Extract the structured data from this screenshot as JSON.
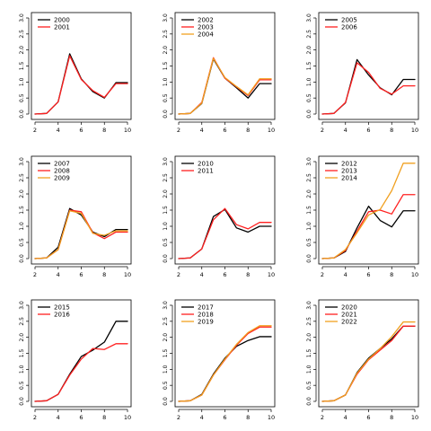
{
  "chart_data": [
    {
      "type": "line",
      "x": [
        2,
        3,
        4,
        5,
        6,
        7,
        8,
        9,
        10
      ],
      "xticks": [
        2,
        4,
        6,
        8,
        10
      ],
      "yticks": [
        "0.0",
        "0.5",
        "1.0",
        "1.5",
        "2.0",
        "2.5",
        "3.0"
      ],
      "xlim": [
        2,
        10
      ],
      "ylim": [
        0,
        3
      ],
      "grid": false,
      "legend": "top-left",
      "series": [
        {
          "name": "2000",
          "color": "#000000",
          "values": [
            0,
            0.02,
            0.38,
            1.88,
            1.1,
            0.7,
            0.5,
            0.98,
            0.98
          ]
        },
        {
          "name": "2001",
          "color": "#ff2020",
          "values": [
            0,
            0.02,
            0.38,
            1.82,
            1.08,
            0.73,
            0.52,
            0.95,
            0.95
          ]
        }
      ]
    },
    {
      "type": "line",
      "x": [
        2,
        3,
        4,
        5,
        6,
        7,
        8,
        9,
        10
      ],
      "xticks": [
        2,
        4,
        6,
        8,
        10
      ],
      "yticks": [
        "0.0",
        "0.5",
        "1.0",
        "1.5",
        "2.0",
        "2.5",
        "3.0"
      ],
      "xlim": [
        2,
        10
      ],
      "ylim": [
        0,
        3
      ],
      "grid": false,
      "legend": "top-left",
      "series": [
        {
          "name": "2002",
          "color": "#000000",
          "values": [
            0,
            0.02,
            0.33,
            1.72,
            1.12,
            0.82,
            0.5,
            0.95,
            0.95
          ]
        },
        {
          "name": "2003",
          "color": "#ff2020",
          "values": [
            0,
            0.02,
            0.36,
            1.76,
            1.12,
            0.85,
            0.58,
            1.07,
            1.07
          ]
        },
        {
          "name": "2004",
          "color": "#f0a020",
          "values": [
            0,
            0.02,
            0.34,
            1.74,
            1.14,
            0.86,
            0.6,
            1.1,
            1.1
          ]
        }
      ]
    },
    {
      "type": "line",
      "x": [
        2,
        3,
        4,
        5,
        6,
        7,
        8,
        9,
        10
      ],
      "xticks": [
        2,
        4,
        6,
        8,
        10
      ],
      "yticks": [
        "0.0",
        "0.5",
        "1.0",
        "1.5",
        "2.0",
        "2.5",
        "3.0"
      ],
      "xlim": [
        2,
        10
      ],
      "ylim": [
        0,
        3
      ],
      "grid": false,
      "legend": "top-left",
      "series": [
        {
          "name": "2005",
          "color": "#000000",
          "values": [
            0,
            0.02,
            0.35,
            1.7,
            1.22,
            0.82,
            0.6,
            1.08,
            1.08
          ]
        },
        {
          "name": "2006",
          "color": "#ff2020",
          "values": [
            0,
            0.02,
            0.36,
            1.6,
            1.3,
            0.8,
            0.62,
            0.88,
            0.88
          ]
        }
      ]
    },
    {
      "type": "line",
      "x": [
        2,
        3,
        4,
        5,
        6,
        7,
        8,
        9,
        10
      ],
      "xticks": [
        2,
        4,
        6,
        8,
        10
      ],
      "yticks": [
        "0.0",
        "0.5",
        "1.0",
        "1.5",
        "2.0",
        "2.5",
        "3.0"
      ],
      "xlim": [
        2,
        10
      ],
      "ylim": [
        0,
        3
      ],
      "grid": false,
      "legend": "top-left",
      "series": [
        {
          "name": "2007",
          "color": "#000000",
          "values": [
            0,
            0.02,
            0.35,
            1.55,
            1.35,
            0.82,
            0.68,
            0.9,
            0.9
          ]
        },
        {
          "name": "2008",
          "color": "#ff2020",
          "values": [
            0,
            0.02,
            0.28,
            1.5,
            1.45,
            0.8,
            0.62,
            0.82,
            0.82
          ]
        },
        {
          "name": "2009",
          "color": "#f0a020",
          "values": [
            0,
            0.02,
            0.28,
            1.48,
            1.4,
            0.78,
            0.72,
            0.86,
            0.86
          ]
        }
      ]
    },
    {
      "type": "line",
      "x": [
        2,
        3,
        4,
        5,
        6,
        7,
        8,
        9,
        10
      ],
      "xticks": [
        2,
        4,
        6,
        8,
        10
      ],
      "yticks": [
        "0.0",
        "0.5",
        "1.0",
        "1.5",
        "2.0",
        "2.5",
        "3.0"
      ],
      "xlim": [
        2,
        10
      ],
      "ylim": [
        0,
        3
      ],
      "grid": false,
      "legend": "top-left",
      "series": [
        {
          "name": "2010",
          "color": "#000000",
          "values": [
            0,
            0.02,
            0.3,
            1.3,
            1.52,
            0.95,
            0.82,
            1.0,
            1.0
          ]
        },
        {
          "name": "2011",
          "color": "#ff2020",
          "values": [
            0,
            0.02,
            0.3,
            1.2,
            1.55,
            1.05,
            0.92,
            1.12,
            1.12
          ]
        }
      ]
    },
    {
      "type": "line",
      "x": [
        2,
        3,
        4,
        5,
        6,
        7,
        8,
        9,
        10
      ],
      "xticks": [
        2,
        4,
        6,
        8,
        10
      ],
      "yticks": [
        "0.0",
        "0.5",
        "1.0",
        "1.5",
        "2.0",
        "2.5",
        "3.0"
      ],
      "xlim": [
        2,
        10
      ],
      "ylim": [
        0,
        3
      ],
      "grid": false,
      "legend": "top-left",
      "series": [
        {
          "name": "2012",
          "color": "#000000",
          "values": [
            0,
            0.02,
            0.22,
            0.95,
            1.62,
            1.18,
            0.98,
            1.48,
            1.48
          ]
        },
        {
          "name": "2013",
          "color": "#ff2020",
          "values": [
            0,
            0.02,
            0.25,
            0.85,
            1.45,
            1.5,
            1.38,
            1.98,
            1.98
          ]
        },
        {
          "name": "2014",
          "color": "#f0a020",
          "values": [
            0,
            0.02,
            0.28,
            0.8,
            1.35,
            1.52,
            2.1,
            2.95,
            2.95
          ]
        }
      ]
    },
    {
      "type": "line",
      "x": [
        2,
        3,
        4,
        5,
        6,
        7,
        8,
        9,
        10
      ],
      "xticks": [
        2,
        4,
        6,
        8,
        10
      ],
      "yticks": [
        "0.0",
        "0.5",
        "1.0",
        "1.5",
        "2.0",
        "2.5",
        "3.0"
      ],
      "xlim": [
        2,
        10
      ],
      "ylim": [
        0,
        3
      ],
      "grid": false,
      "legend": "top-left",
      "series": [
        {
          "name": "2015",
          "color": "#000000",
          "values": [
            0,
            0.02,
            0.22,
            0.85,
            1.4,
            1.6,
            1.85,
            2.5,
            2.5
          ]
        },
        {
          "name": "2016",
          "color": "#ff2020",
          "values": [
            0,
            0.02,
            0.22,
            0.82,
            1.32,
            1.65,
            1.62,
            1.8,
            1.8
          ]
        }
      ]
    },
    {
      "type": "line",
      "x": [
        2,
        3,
        4,
        5,
        6,
        7,
        8,
        9,
        10
      ],
      "xticks": [
        2,
        4,
        6,
        8,
        10
      ],
      "yticks": [
        "0.0",
        "0.5",
        "1.0",
        "1.5",
        "2.0",
        "2.5",
        "3.0"
      ],
      "xlim": [
        2,
        10
      ],
      "ylim": [
        0,
        3
      ],
      "grid": false,
      "legend": "top-left",
      "series": [
        {
          "name": "2017",
          "color": "#000000",
          "values": [
            0,
            0.02,
            0.22,
            0.85,
            1.35,
            1.72,
            1.9,
            2.02,
            2.02
          ]
        },
        {
          "name": "2018",
          "color": "#ff2020",
          "values": [
            0,
            0.02,
            0.2,
            0.82,
            1.3,
            1.75,
            2.12,
            2.32,
            2.32
          ]
        },
        {
          "name": "2019",
          "color": "#f0a020",
          "values": [
            0,
            0.02,
            0.2,
            0.82,
            1.32,
            1.78,
            2.15,
            2.36,
            2.36
          ]
        }
      ]
    },
    {
      "type": "line",
      "x": [
        2,
        3,
        4,
        5,
        6,
        7,
        8,
        9,
        10
      ],
      "xticks": [
        2,
        4,
        6,
        8,
        10
      ],
      "yticks": [
        "0.0",
        "0.5",
        "1.0",
        "1.5",
        "2.0",
        "2.5",
        "3.0"
      ],
      "xlim": [
        2,
        10
      ],
      "ylim": [
        0,
        3
      ],
      "grid": false,
      "legend": "top-left",
      "series": [
        {
          "name": "2020",
          "color": "#000000",
          "values": [
            0,
            0.02,
            0.2,
            0.9,
            1.35,
            1.65,
            1.95,
            2.35,
            2.35
          ]
        },
        {
          "name": "2021",
          "color": "#ff2020",
          "values": [
            0,
            0.02,
            0.2,
            0.85,
            1.3,
            1.6,
            1.9,
            2.35,
            2.35
          ]
        },
        {
          "name": "2022",
          "color": "#f0a020",
          "values": [
            0,
            0.02,
            0.2,
            0.88,
            1.32,
            1.65,
            2.02,
            2.48,
            2.48
          ]
        }
      ]
    }
  ]
}
